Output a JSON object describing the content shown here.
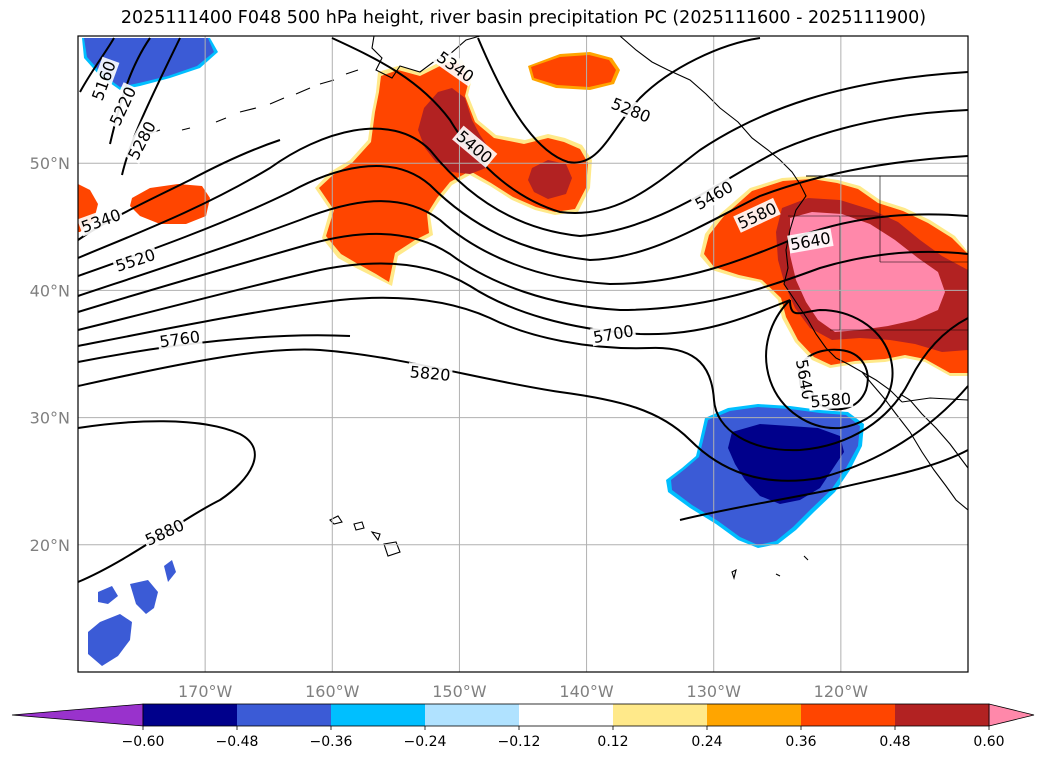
{
  "title": "2025111400 F048 500 hPa height, river basin precipitation PC (2025111600 - 2025111900)",
  "map": {
    "lon_range": [
      -180,
      -110
    ],
    "lat_range": [
      10,
      60
    ],
    "lat_ticks": [
      {
        "value": 20,
        "label": "20°N"
      },
      {
        "value": 30,
        "label": "30°N"
      },
      {
        "value": 40,
        "label": "40°N"
      },
      {
        "value": 50,
        "label": "50°N"
      }
    ],
    "lon_ticks": [
      {
        "value": -170,
        "label": "170°W"
      },
      {
        "value": -160,
        "label": "160°W"
      },
      {
        "value": -150,
        "label": "150°W"
      },
      {
        "value": -140,
        "label": "140°W"
      },
      {
        "value": -130,
        "label": "130°W"
      },
      {
        "value": -120,
        "label": "120°W"
      }
    ],
    "contour_labels": [
      {
        "text": "5160",
        "lon": -178.0,
        "lat": 56.5,
        "rot": -70
      },
      {
        "text": "5220",
        "lon": -176.5,
        "lat": 54.5,
        "rot": -65
      },
      {
        "text": "5280",
        "lon": -175.0,
        "lat": 51.8,
        "rot": -62
      },
      {
        "text": "5340",
        "lon": -178.2,
        "lat": 45.5,
        "rot": -20
      },
      {
        "text": "5520",
        "lon": -175.5,
        "lat": 42.4,
        "rot": -18
      },
      {
        "text": "5760",
        "lon": -172.0,
        "lat": 36.2,
        "rot": -8
      },
      {
        "text": "5340",
        "lon": -150.3,
        "lat": 57.6,
        "rot": 35
      },
      {
        "text": "5400",
        "lon": -148.8,
        "lat": 51.3,
        "rot": 40
      },
      {
        "text": "5280",
        "lon": -136.5,
        "lat": 54.2,
        "rot": 22
      },
      {
        "text": "5460",
        "lon": -130.0,
        "lat": 47.5,
        "rot": -30
      },
      {
        "text": "5580",
        "lon": -126.6,
        "lat": 45.9,
        "rot": -25
      },
      {
        "text": "5640",
        "lon": -122.4,
        "lat": 43.9,
        "rot": -10
      },
      {
        "text": "5700",
        "lon": -137.9,
        "lat": 36.6,
        "rot": -10
      },
      {
        "text": "5820",
        "lon": -152.3,
        "lat": 33.5,
        "rot": 5
      },
      {
        "text": "5640",
        "lon": -122.8,
        "lat": 33.0,
        "rot": 80
      },
      {
        "text": "5580",
        "lon": -120.8,
        "lat": 31.4,
        "rot": -5
      },
      {
        "text": "5880",
        "lon": -173.2,
        "lat": 21.0,
        "rot": -25
      }
    ]
  },
  "colorbar": {
    "levels": [
      -0.6,
      -0.48,
      -0.36,
      -0.24,
      -0.12,
      0.12,
      0.24,
      0.36,
      0.48,
      0.6
    ],
    "labels": [
      "−0.60",
      "−0.48",
      "−0.36",
      "−0.24",
      "−0.12",
      "0.12",
      "0.24",
      "0.36",
      "0.48",
      "0.60"
    ],
    "colors": [
      "#9932cc",
      "#00008b",
      "#3b5bd6",
      "#00bfff",
      "#b0e2ff",
      "#ffffff",
      "#ffe98a",
      "#ffa500",
      "#ff4500",
      "#b22222",
      "#ff88aa"
    ]
  },
  "colors": {
    "land_outline": "#000000",
    "grid": "#b0b0b0",
    "contour": "#000000"
  }
}
